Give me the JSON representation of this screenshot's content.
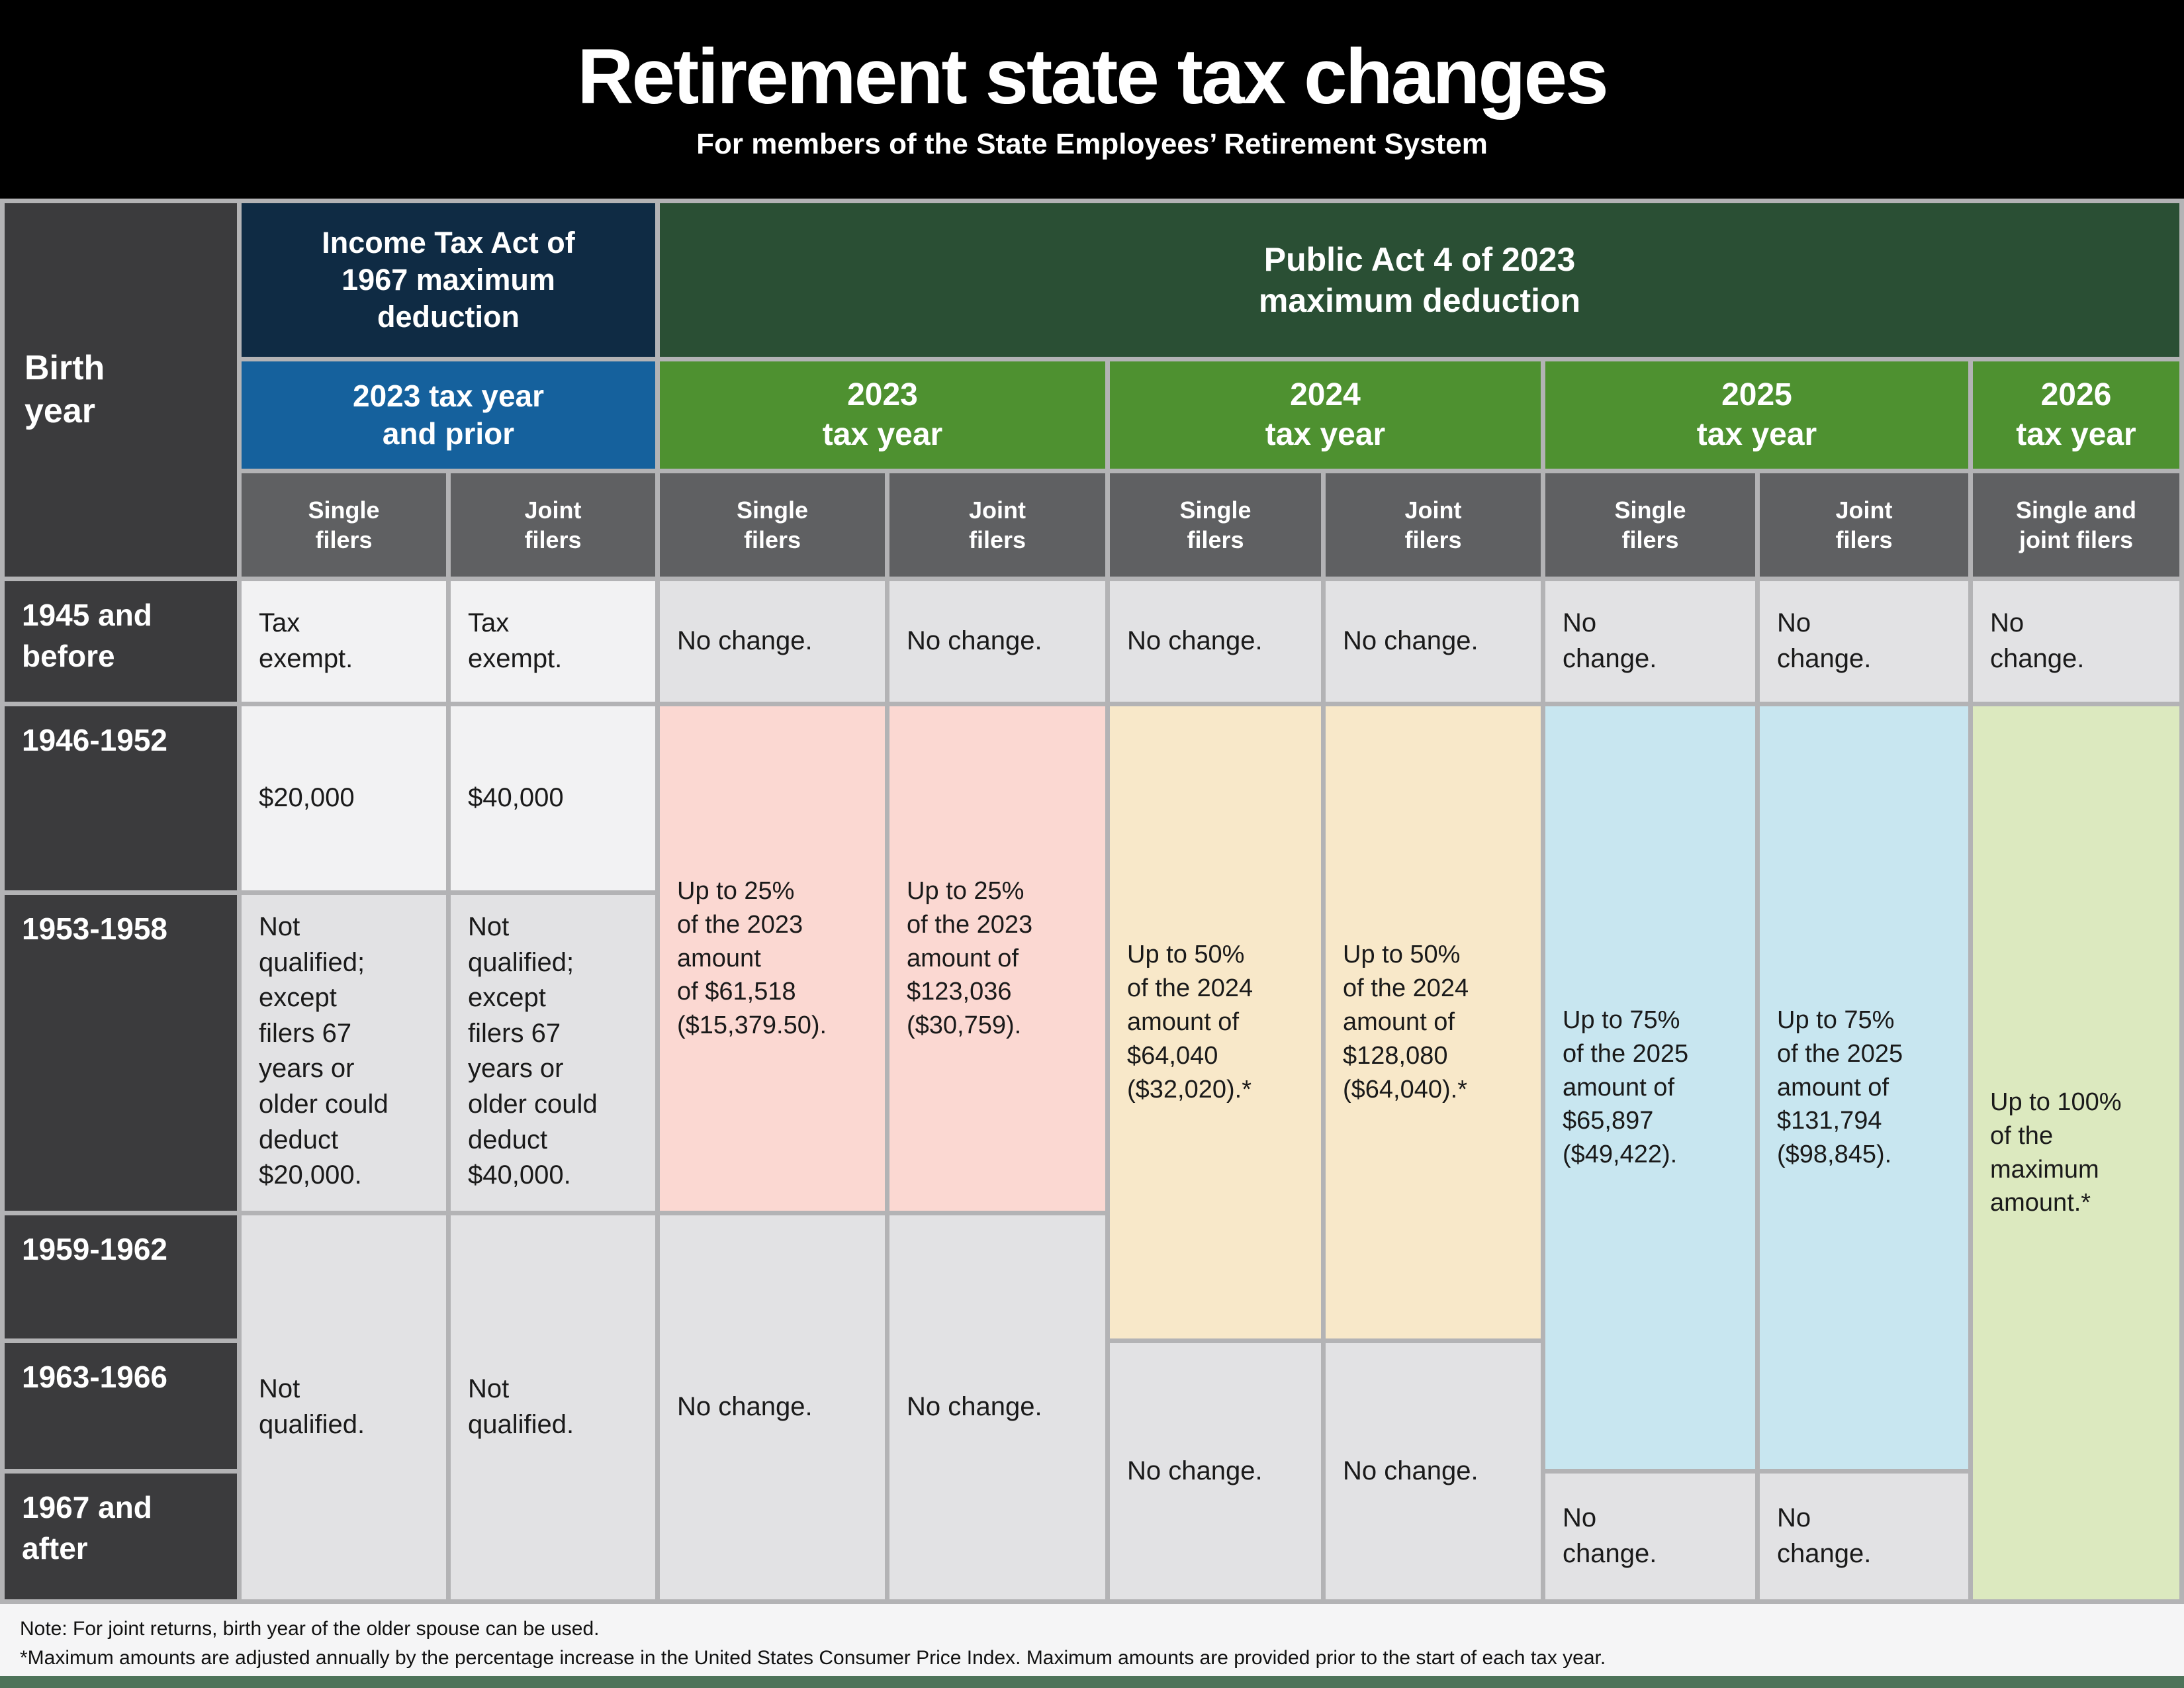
{
  "title": {
    "main": "Retirement state tax changes",
    "subtitle": "For members of the State Employees’ Retirement System"
  },
  "table": {
    "headers": {
      "birth": "Birth\nyear",
      "ita_group": "Income Tax Act of\n1967 maximum\ndeduction",
      "pa_group": "Public Act 4 of 2023\nmaximum deduction",
      "y2023_prior": "2023 tax year\nand prior",
      "y2023": "2023\ntax year",
      "y2024": "2024\ntax year",
      "y2025": "2025\ntax year",
      "y2026": "2026\ntax year",
      "single": "Single\nfilers",
      "joint": "Joint\nfilers",
      "single_joint": "Single and\njoint filers"
    },
    "row_labels": {
      "r1945": "1945 and\nbefore",
      "r1946": "1946-1952",
      "r1953": "1953-1958",
      "r1959": "1959-1962",
      "r1963": "1963-1966",
      "r1967": "1967 and\nafter"
    },
    "cells": {
      "r1945": {
        "ita_single": "Tax\nexempt.",
        "ita_joint": "Tax\nexempt.",
        "y23_single": "No change.",
        "y23_joint": "No change.",
        "y24_single": "No change.",
        "y24_joint": "No change.",
        "y25_single": "No\nchange.",
        "y25_joint": "No\nchange.",
        "y26": "No\nchange."
      },
      "r1946": {
        "ita_single": "$20,000",
        "ita_joint": "$40,000"
      },
      "r1953": {
        "ita_single": "Not\nqualified;\nexcept\nfilers 67\nyears or\nolder could\ndeduct\n$20,000.",
        "ita_joint": "Not\nqualified;\nexcept\nfilers 67\nyears or\nolder could\ndeduct\n$40,000."
      },
      "merged": {
        "ita_single_nq": "Not\nqualified.",
        "ita_joint_nq": "Not\nqualified.",
        "y23_single_25": "Up to 25%\nof the 2023\namount\nof $61,518\n($15,379.50).",
        "y23_joint_25": "Up to 25%\nof the 2023\namount of\n$123,036\n($30,759).",
        "y23_single_nc": "No change.",
        "y23_joint_nc": "No change.",
        "y24_single_50": "Up to 50%\nof the 2024\namount of\n$64,040\n($32,020).*",
        "y24_joint_50": "Up to 50%\nof the 2024\namount of\n$128,080\n($64,040).*",
        "y24_single_nc": "No change.",
        "y24_joint_nc": "No change.",
        "y25_single_75": "Up to 75%\nof the 2025\namount of\n$65,897\n($49,422).",
        "y25_joint_75": "Up to 75%\nof the 2025\namount of\n$131,794\n($98,845).",
        "y25_single_nc": "No\nchange.",
        "y25_joint_nc": "No\nchange.",
        "y26_100": "Up to 100%\nof the\nmaximum\namount.*"
      }
    }
  },
  "notes": {
    "line1": "Note: For joint returns, birth year of the older spouse can be used.",
    "line2": "*Maximum amounts are adjusted annually by the percentage increase in the United States Consumer Price Index. Maximum amounts are provided prior to the start of each tax year."
  },
  "colors": {
    "navy_header": "#0f2b44",
    "blue_header": "#15619d",
    "dark_green_header": "#2a4f34",
    "green_year_header": "#4e9130",
    "filers_gray": "#5f6062",
    "birth_col_dark": "#3b3b3d",
    "row_light": "#f2f2f3",
    "row_shade": "#e2e2e4",
    "pink_2023": "#fbd8d2",
    "tan_2024": "#f8e8c9",
    "light_blue_2025": "#c8e6f0",
    "light_green_2026": "#dce9bf",
    "grid_line": "#b3b3b5",
    "bottom_bar_green": "#4d7359"
  },
  "chart_data": {
    "type": "table",
    "title": "Retirement state tax changes",
    "subtitle": "For members of the State Employees’ Retirement System",
    "column_groups": [
      "Income Tax Act of 1967 maximum deduction — 2023 tax year and prior",
      "Public Act 4 of 2023 maximum deduction — 2023, 2024, 2025, 2026 tax years"
    ],
    "columns": [
      "Birth year",
      "1967 Act — Single filers",
      "1967 Act — Joint filers",
      "2023 — Single filers",
      "2023 — Joint filers",
      "2024 — Single filers",
      "2024 — Joint filers",
      "2025 — Single filers",
      "2025 — Joint filers",
      "2026 — Single and joint filers"
    ],
    "rows": [
      [
        "1945 and before",
        "Tax exempt.",
        "Tax exempt.",
        "No change.",
        "No change.",
        "No change.",
        "No change.",
        "No change.",
        "No change.",
        "No change."
      ],
      [
        "1946-1952",
        "$20,000",
        "$40,000",
        "Up to 25% of the 2023 amount of $61,518 ($15,379.50).",
        "Up to 25% of the 2023 amount of $123,036 ($30,759).",
        "Up to 50% of the 2024 amount of $64,040 ($32,020).*",
        "Up to 50% of the 2024 amount of $128,080 ($64,040).*",
        "Up to 75% of the 2025 amount of $65,897 ($49,422).",
        "Up to 75% of the 2025 amount of $131,794 ($98,845).",
        "Up to 100% of the maximum amount.*"
      ],
      [
        "1953-1958",
        "Not qualified; except filers 67 years or older could deduct $20,000.",
        "Not qualified; except filers 67 years or older could deduct $40,000.",
        "Up to 25% of the 2023 amount of $61,518 ($15,379.50).",
        "Up to 25% of the 2023 amount of $123,036 ($30,759).",
        "Up to 50% of the 2024 amount of $64,040 ($32,020).*",
        "Up to 50% of the 2024 amount of $128,080 ($64,040).*",
        "Up to 75% of the 2025 amount of $65,897 ($49,422).",
        "Up to 75% of the 2025 amount of $131,794 ($98,845).",
        "Up to 100% of the maximum amount.*"
      ],
      [
        "1959-1962",
        "Not qualified.",
        "Not qualified.",
        "No change.",
        "No change.",
        "Up to 50% of the 2024 amount of $64,040 ($32,020).*",
        "Up to 50% of the 2024 amount of $128,080 ($64,040).*",
        "Up to 75% of the 2025 amount of $65,897 ($49,422).",
        "Up to 75% of the 2025 amount of $131,794 ($98,845).",
        "Up to 100% of the maximum amount.*"
      ],
      [
        "1963-1966",
        "Not qualified.",
        "Not qualified.",
        "No change.",
        "No change.",
        "No change.",
        "No change.",
        "Up to 75% of the 2025 amount of $65,897 ($49,422).",
        "Up to 75% of the 2025 amount of $131,794 ($98,845).",
        "Up to 100% of the maximum amount.*"
      ],
      [
        "1967 and after",
        "Not qualified.",
        "Not qualified.",
        "No change.",
        "No change.",
        "No change.",
        "No change.",
        "No change.",
        "No change.",
        "Up to 100% of the maximum amount.*"
      ]
    ],
    "notes": [
      "Note: For joint returns, birth year of the older spouse can be used.",
      "*Maximum amounts are adjusted annually by the percentage increase in the United States Consumer Price Index. Maximum amounts are provided prior to the start of each tax year."
    ]
  }
}
